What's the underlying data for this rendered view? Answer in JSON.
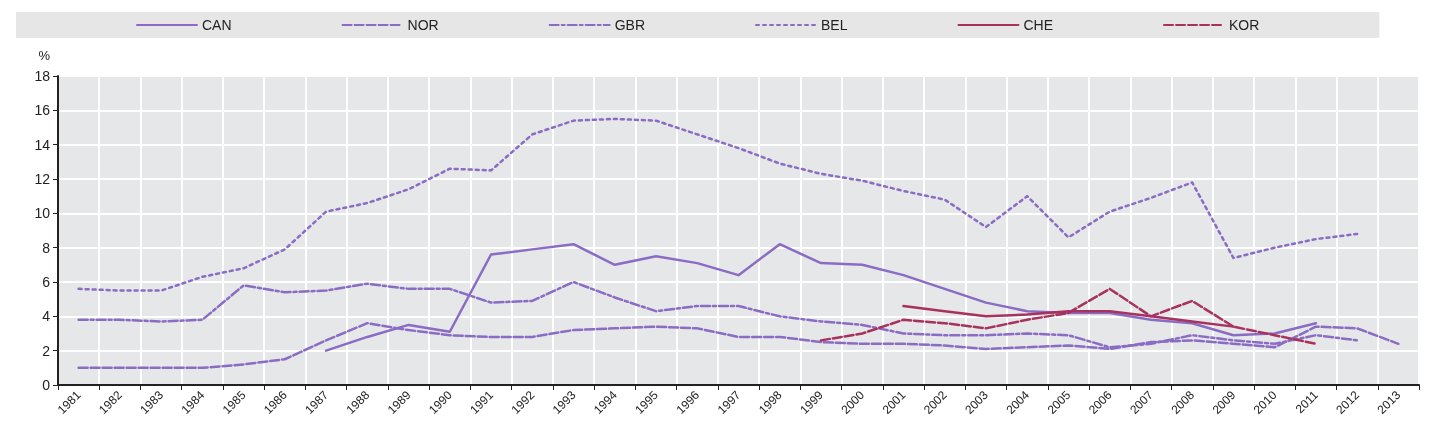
{
  "chart_data": {
    "type": "line",
    "ylabel": "%",
    "categories": [
      "1981",
      "1982",
      "1983",
      "1984",
      "1985",
      "1986",
      "1987",
      "1988",
      "1989",
      "1990",
      "1991",
      "1992",
      "1993",
      "1994",
      "1995",
      "1996",
      "1997",
      "1998",
      "1999",
      "2000",
      "2001",
      "2002",
      "2003",
      "2004",
      "2005",
      "2006",
      "2007",
      "2008",
      "2009",
      "2010",
      "2011",
      "2012",
      "2013"
    ],
    "ylim": [
      0,
      18
    ],
    "yticks": [
      0,
      2,
      4,
      6,
      8,
      10,
      12,
      14,
      16,
      18
    ],
    "grid": true,
    "legend": "top",
    "marker": "none",
    "series": [
      {
        "name": "CAN",
        "color": "#8a6cc4",
        "line_style": "solid",
        "values": [
          null,
          null,
          null,
          null,
          null,
          null,
          2.0,
          2.8,
          3.5,
          3.1,
          7.6,
          7.9,
          8.2,
          7.0,
          7.5,
          7.1,
          6.4,
          8.2,
          7.1,
          7.0,
          6.4,
          5.6,
          4.8,
          4.3,
          4.2,
          4.2,
          3.8,
          3.6,
          2.9,
          3.0,
          3.6,
          null,
          null
        ]
      },
      {
        "name": "NOR",
        "color": "#8a6cc4",
        "line_style": "dashed",
        "values": [
          1.0,
          1.0,
          1.0,
          1.0,
          1.2,
          1.5,
          2.6,
          3.6,
          3.2,
          2.9,
          2.8,
          2.8,
          3.2,
          3.3,
          3.4,
          3.3,
          2.8,
          2.8,
          2.5,
          2.4,
          2.4,
          2.3,
          2.1,
          2.2,
          2.3,
          2.1,
          2.5,
          2.6,
          2.4,
          2.2,
          3.4,
          3.3,
          2.4
        ]
      },
      {
        "name": "GBR",
        "color": "#8a6cc4",
        "line_style": "dashdot",
        "values": [
          3.8,
          3.8,
          3.7,
          3.8,
          5.8,
          5.4,
          5.5,
          5.9,
          5.6,
          5.6,
          4.8,
          4.9,
          6.0,
          5.1,
          4.3,
          4.6,
          4.6,
          4.0,
          3.7,
          3.5,
          3.0,
          2.9,
          2.9,
          3.0,
          2.9,
          2.2,
          2.4,
          2.9,
          2.6,
          2.4,
          2.9,
          2.6,
          null
        ]
      },
      {
        "name": "BEL",
        "color": "#8a6cc4",
        "line_style": "dotted",
        "values": [
          5.6,
          5.5,
          5.5,
          6.3,
          6.8,
          7.9,
          10.1,
          10.6,
          11.4,
          12.6,
          12.5,
          14.6,
          15.4,
          15.5,
          15.4,
          14.6,
          13.8,
          12.9,
          12.3,
          11.9,
          11.3,
          10.8,
          9.2,
          11.0,
          8.6,
          10.1,
          10.9,
          11.8,
          7.4,
          8.0,
          8.5,
          8.8,
          null
        ]
      },
      {
        "name": "CHE",
        "color": "#a8325e",
        "line_style": "solid",
        "values": [
          null,
          null,
          null,
          null,
          null,
          null,
          null,
          null,
          null,
          null,
          null,
          null,
          null,
          null,
          null,
          null,
          null,
          null,
          null,
          null,
          4.6,
          4.3,
          4.0,
          4.1,
          4.3,
          4.3,
          4.0,
          3.7,
          3.4,
          null,
          null,
          null,
          null
        ]
      },
      {
        "name": "KOR",
        "color": "#a8325e",
        "line_style": "dashed",
        "values": [
          null,
          null,
          null,
          null,
          null,
          null,
          null,
          null,
          null,
          null,
          null,
          null,
          null,
          null,
          null,
          null,
          null,
          null,
          2.6,
          3.0,
          3.8,
          3.6,
          3.3,
          3.8,
          4.2,
          5.6,
          4.0,
          4.9,
          3.4,
          2.9,
          2.4,
          null,
          null
        ]
      }
    ]
  }
}
